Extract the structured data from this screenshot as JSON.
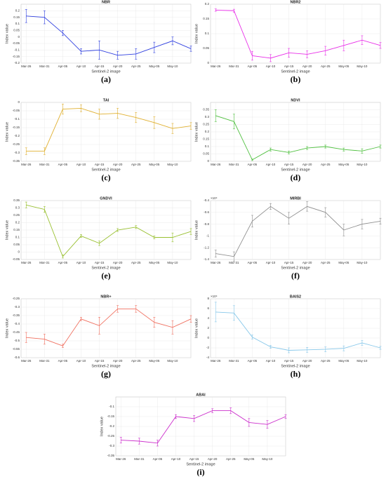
{
  "chart_data": [
    {
      "type": "line",
      "title": "NBR",
      "label": "(a)",
      "xlabel": "Sentinel-2 image",
      "ylabel": "Index value",
      "categories": [
        "Mar-26",
        "Mar-31",
        "Apr-05",
        "Apr-10",
        "Apr-15",
        "Apr-20",
        "Apr-25",
        "May-05",
        "May-10",
        null
      ],
      "values": [
        0.16,
        0.15,
        0.03,
        -0.11,
        -0.1,
        -0.14,
        -0.13,
        -0.08,
        -0.03,
        -0.09
      ],
      "errors": [
        0.05,
        0.05,
        0.02,
        0.02,
        0.07,
        0.03,
        0.04,
        0.04,
        0.03,
        0.02
      ],
      "color": "#3040e0",
      "ylim": [
        -0.2,
        0.25
      ],
      "yticks": [
        -0.2,
        -0.15,
        -0.1,
        -0.05,
        0,
        0.05,
        0.1,
        0.15,
        0.2
      ],
      "grid": true
    },
    {
      "type": "line",
      "title": "NBR2",
      "label": "(b)",
      "xlabel": "Sentinel-2 image",
      "ylabel": "Index value",
      "categories": [
        "Mar-26",
        "Mar-31",
        "Apr-05",
        "Apr-10",
        "Apr-15",
        "Apr-20",
        "Apr-25",
        "May-05",
        "May-10",
        null
      ],
      "values": [
        0.18,
        0.178,
        0.025,
        0.017,
        0.035,
        0.03,
        0.042,
        0.06,
        0.078,
        0.06
      ],
      "errors": [
        0.004,
        0.005,
        0.015,
        0.012,
        0.015,
        0.012,
        0.015,
        0.018,
        0.015,
        0.01
      ],
      "color": "#e830e8",
      "ylim": [
        0,
        0.2
      ],
      "yticks": [
        0,
        0.05,
        0.1,
        0.15,
        0.2
      ],
      "grid": true
    },
    {
      "type": "line",
      "title": "TAI",
      "label": "(c)",
      "xlabel": "Sentinel-2 image",
      "ylabel": "Index value",
      "categories": [
        "Mar-26",
        "Mar-31",
        "Apr-05",
        "Apr-10",
        "Apr-15",
        "Apr-20",
        "Apr-25",
        "May-05",
        "May-10",
        null
      ],
      "values": [
        -0.29,
        -0.29,
        -0.04,
        -0.035,
        -0.07,
        -0.065,
        -0.09,
        -0.12,
        -0.155,
        -0.14
      ],
      "errors": [
        0.02,
        0.02,
        0.03,
        0.02,
        0.03,
        0.03,
        0.03,
        0.035,
        0.03,
        0.02
      ],
      "color": "#e0b030",
      "ylim": [
        -0.35,
        0
      ],
      "yticks": [
        -0.35,
        -0.3,
        -0.25,
        -0.2,
        -0.15,
        -0.1,
        -0.05,
        0
      ],
      "grid": true
    },
    {
      "type": "line",
      "title": "NDVI",
      "label": "(d)",
      "xlabel": "Sentinel-2 image",
      "ylabel": "Index value",
      "categories": [
        "Mar-26",
        "Mar-31",
        "Apr-05",
        "Apr-10",
        "Apr-15",
        "Apr-20",
        "Apr-25",
        "May-05",
        "May-10",
        null
      ],
      "values": [
        0.31,
        0.27,
        0.01,
        0.08,
        0.06,
        0.09,
        0.1,
        0.08,
        0.07,
        0.1
      ],
      "errors": [
        0.04,
        0.05,
        0.005,
        0.01,
        0.01,
        0.01,
        0.01,
        0.01,
        0.015,
        0.01
      ],
      "color": "#50c040",
      "ylim": [
        0,
        0.4
      ],
      "yticks": [
        0,
        0.05,
        0.1,
        0.15,
        0.2,
        0.25,
        0.3,
        0.35
      ],
      "grid": true
    },
    {
      "type": "line",
      "title": "GNDVI",
      "label": "(e)",
      "xlabel": "Sentinel-2 image",
      "ylabel": "Index value",
      "categories": [
        "Mar-26",
        "Mar-31",
        "Apr-05",
        "Apr-10",
        "Apr-15",
        "Apr-20",
        "Apr-25",
        "May-05",
        "May-10",
        null
      ],
      "values": [
        0.32,
        0.29,
        -0.03,
        0.11,
        0.06,
        0.15,
        0.17,
        0.1,
        0.1,
        0.14
      ],
      "errors": [
        0.02,
        0.02,
        0.01,
        0.01,
        0.015,
        0.01,
        0.01,
        0.01,
        0.03,
        0.02
      ],
      "color": "#99c030",
      "ylim": [
        -0.05,
        0.35
      ],
      "yticks": [
        -0.05,
        0,
        0.05,
        0.1,
        0.15,
        0.2,
        0.25,
        0.3,
        0.35
      ],
      "grid": true
    },
    {
      "type": "line",
      "title": "MIRBI",
      "label": "(f)",
      "xlabel": "Sentinel-2 image",
      "ylabel": "Index value",
      "yexponent": "×10⁴",
      "categories": [
        "Mar-26",
        "Mar-31",
        "Apr-05",
        "Apr-10",
        "Apr-15",
        "Apr-20",
        "Apr-25",
        "May-05",
        "May-10",
        null
      ],
      "values": [
        -1.3,
        -1.35,
        -0.75,
        -0.5,
        -0.7,
        -0.5,
        -0.6,
        -0.9,
        -0.8,
        -0.75
      ],
      "errors": [
        0.06,
        0.08,
        0.1,
        0.05,
        0.1,
        0.08,
        0.08,
        0.1,
        0.08,
        0.05
      ],
      "color": "#909090",
      "ylim": [
        -1.4,
        -0.4
      ],
      "yticks": [
        -1.4,
        -1.2,
        -1,
        -0.8,
        -0.6,
        -0.4
      ],
      "grid": true
    },
    {
      "type": "line",
      "title": "NBR+",
      "label": "(g)",
      "xlabel": "Sentinel-2 image",
      "ylabel": "Index value",
      "categories": [
        "Mar-26",
        "Mar-31",
        "Apr-05",
        "Apr-10",
        "Apr-15",
        "Apr-20",
        "Apr-25",
        "May-05",
        "May-10",
        null
      ],
      "values": [
        -0.48,
        -0.49,
        -0.53,
        -0.37,
        -0.41,
        -0.31,
        -0.31,
        -0.39,
        -0.42,
        -0.37
      ],
      "errors": [
        0.03,
        0.03,
        0.01,
        0.01,
        0.05,
        0.02,
        0.02,
        0.03,
        0.04,
        0.02
      ],
      "color": "#f07060",
      "ylim": [
        -0.6,
        -0.25
      ],
      "yticks": [
        -0.6,
        -0.55,
        -0.5,
        -0.45,
        -0.4,
        -0.35,
        -0.3,
        -0.25
      ],
      "grid": true
    },
    {
      "type": "line",
      "title": "BAIS2",
      "label": "(h)",
      "xlabel": "Sentinel-2 image",
      "ylabel": "Index value",
      "yexponent": "×10⁴",
      "categories": [
        "Mar-26",
        "Mar-31",
        "Apr-05",
        "Apr-10",
        "Apr-15",
        "Apr-20",
        "Apr-25",
        "May-05",
        "May-10",
        null
      ],
      "values": [
        5.3,
        5.1,
        0.2,
        -1.8,
        -2.5,
        -2.4,
        -2.3,
        -2.1,
        -1.0,
        -2.0
      ],
      "errors": [
        2,
        1.5,
        0.4,
        0.3,
        0.5,
        0.5,
        0.5,
        0.5,
        0.5,
        0.3
      ],
      "color": "#88c8ea",
      "ylim": [
        -4,
        8
      ],
      "yticks": [
        -4,
        -2,
        0,
        2,
        4,
        6,
        8
      ],
      "grid": true
    },
    {
      "type": "line",
      "title": "ABAI",
      "label": "(i)",
      "xlabel": "Sentinel-2 image",
      "ylabel": "Index value",
      "categories": [
        "Mar-26",
        "Mar-31",
        "Apr-05",
        "Apr-10",
        "Apr-15",
        "Apr-20",
        "Apr-25",
        "May-05",
        "May-10",
        null
      ],
      "values": [
        -0.27,
        -0.275,
        -0.285,
        -0.15,
        -0.16,
        -0.12,
        -0.12,
        -0.18,
        -0.19,
        -0.15
      ],
      "errors": [
        0.015,
        0.015,
        0.015,
        0.01,
        0.015,
        0.01,
        0.015,
        0.02,
        0.02,
        0.01
      ],
      "color": "#cc30cc",
      "ylim": [
        -0.35,
        -0.05
      ],
      "yticks": [
        -0.35,
        -0.3,
        -0.25,
        -0.2,
        -0.15,
        -0.1
      ],
      "grid": true
    }
  ]
}
